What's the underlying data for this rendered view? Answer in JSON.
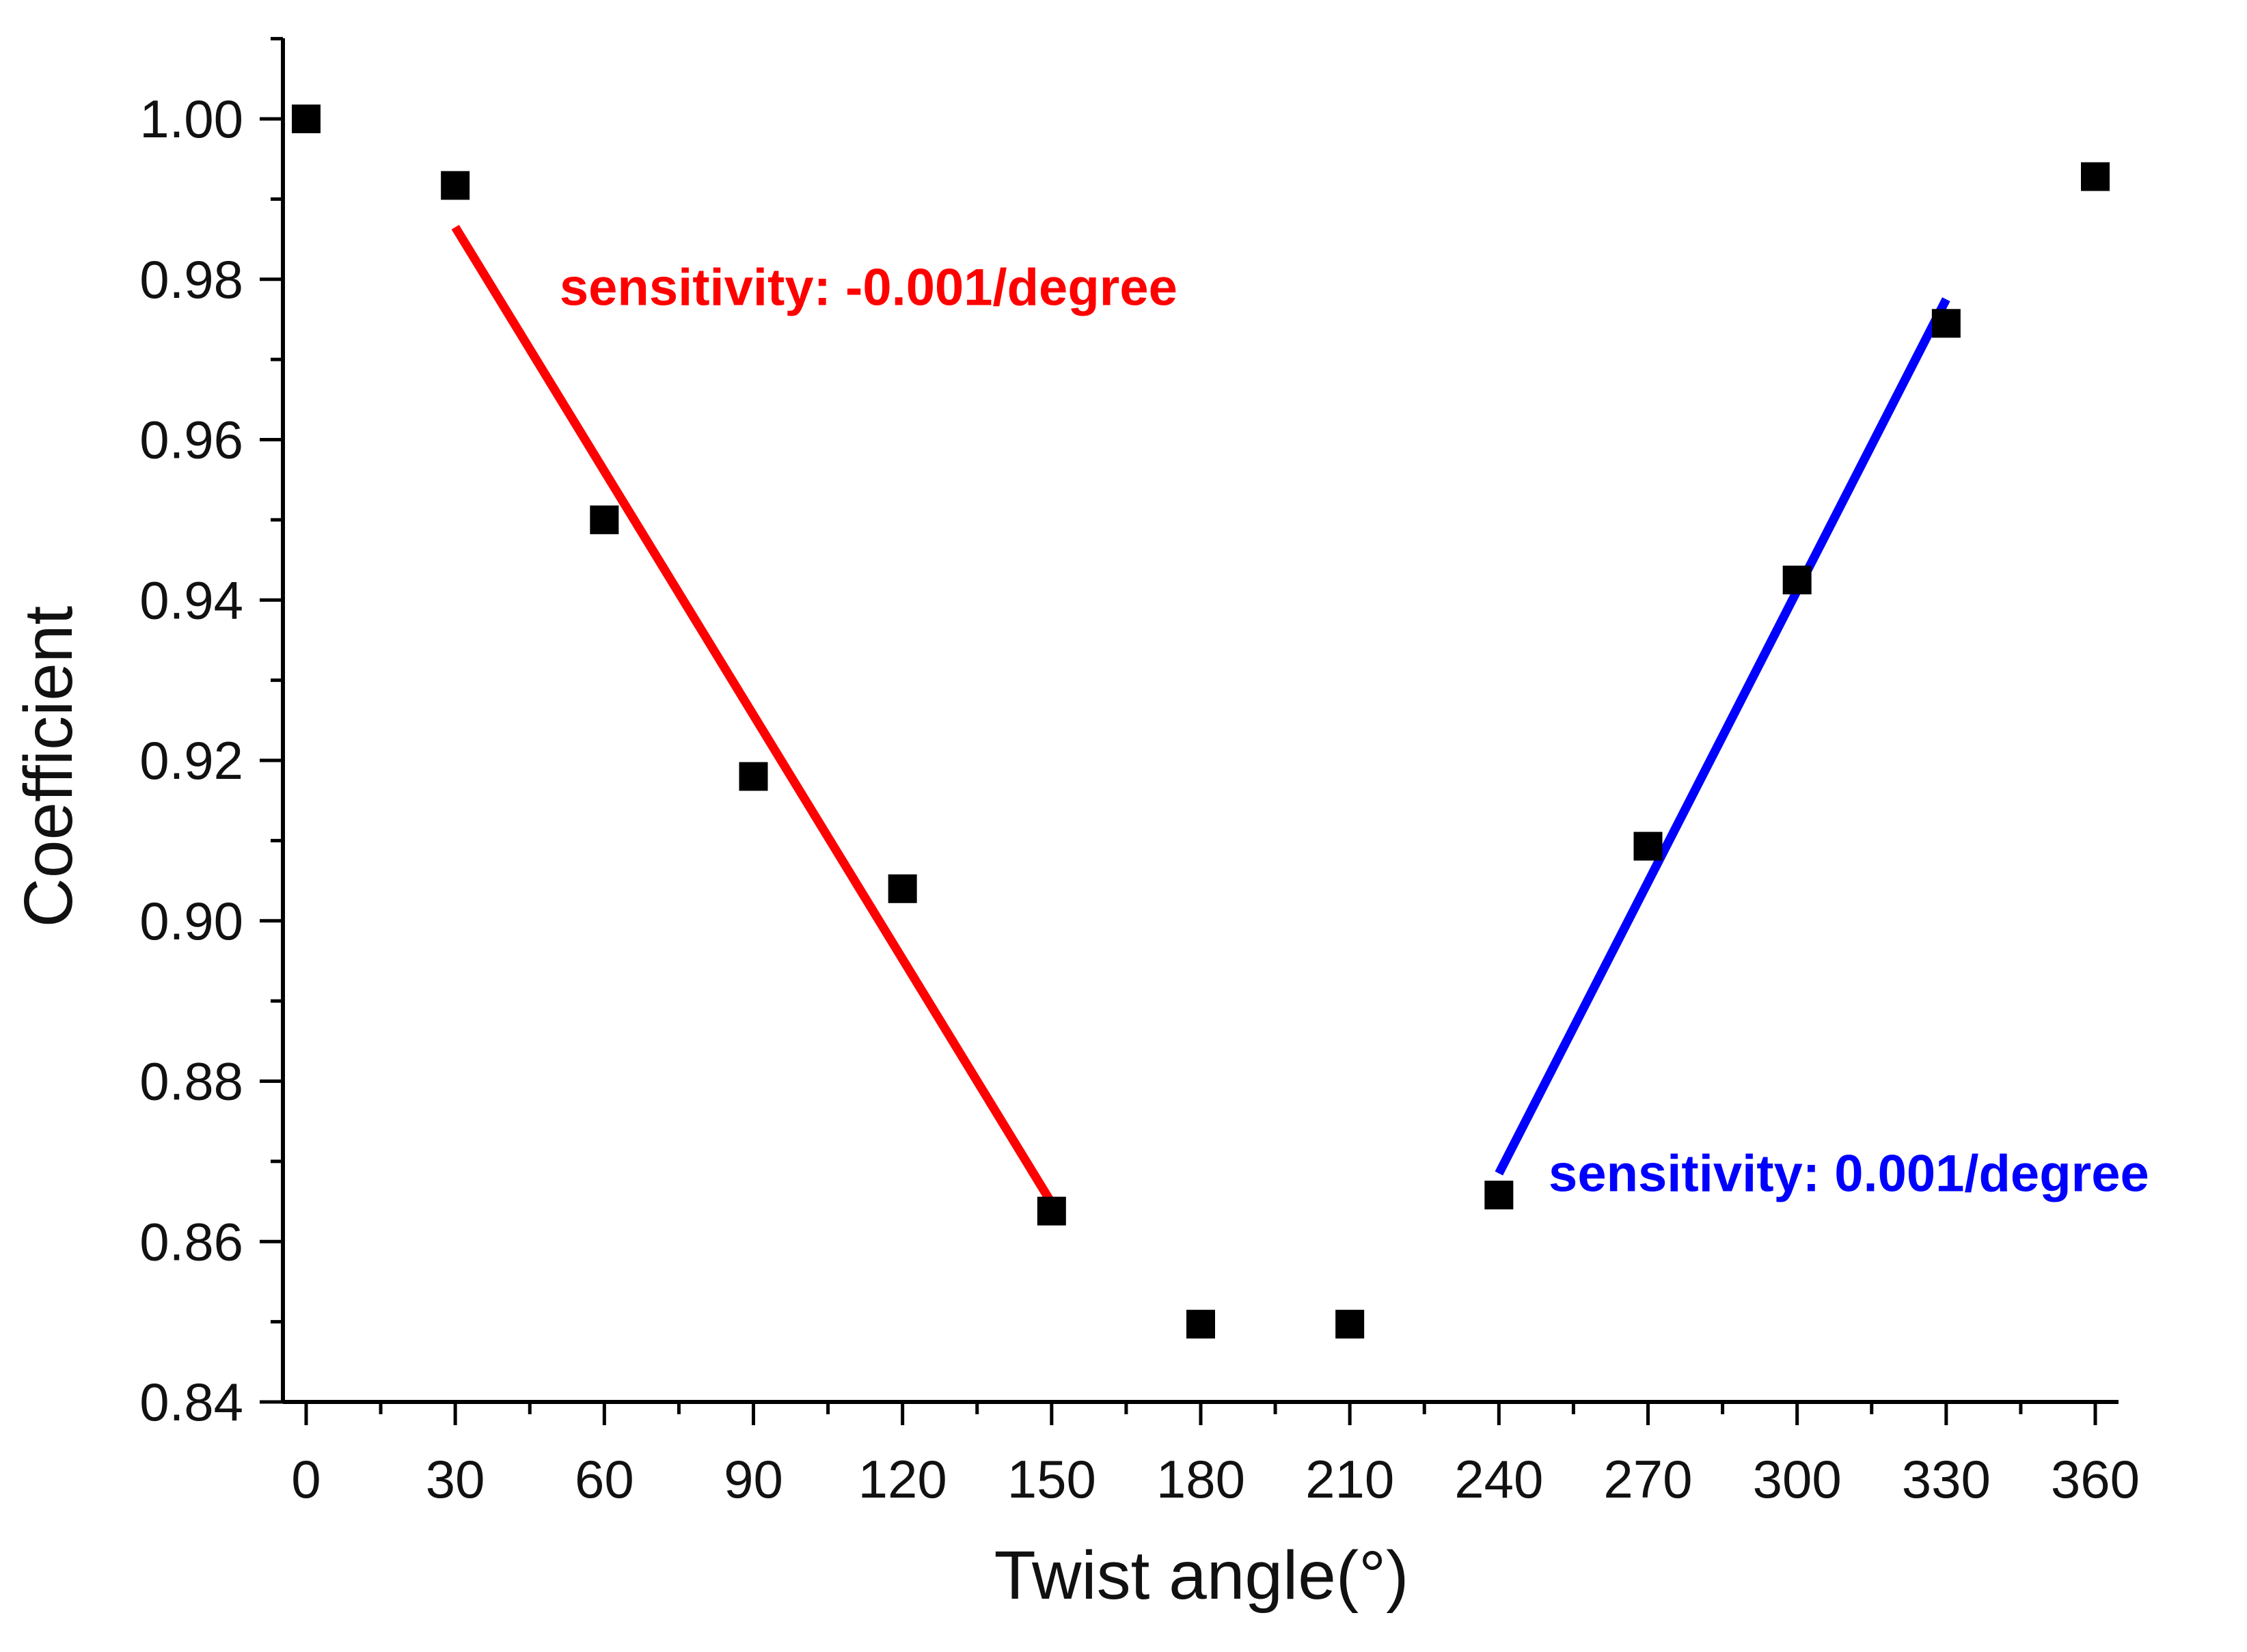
{
  "chart_data": {
    "type": "scatter",
    "xlabel": "Twist angle(°)",
    "ylabel": "Coefficient",
    "xlim": [
      -8,
      380
    ],
    "ylim": [
      0.84,
      1.01
    ],
    "x_ticks": [
      0,
      30,
      60,
      90,
      120,
      150,
      180,
      210,
      240,
      270,
      300,
      330,
      360
    ],
    "x_tick_labels": [
      "0",
      "30",
      "60",
      "90",
      "120",
      "150",
      "180",
      "210",
      "240",
      "270",
      "300",
      "330",
      "360"
    ],
    "y_ticks": [
      0.84,
      0.86,
      0.88,
      0.9,
      0.92,
      0.94,
      0.96,
      0.98,
      1.0
    ],
    "y_tick_labels": [
      "0.84",
      "0.86",
      "0.88",
      "0.90",
      "0.92",
      "0.94",
      "0.96",
      "0.98",
      "1.00"
    ],
    "grid": false,
    "legend": "none",
    "series": [
      {
        "marker": "square",
        "color": "#000000",
        "x": [
          0,
          30,
          60,
          90,
          120,
          150,
          180,
          210,
          240,
          270,
          300,
          330,
          360
        ],
        "y": [
          1.0,
          0.9917,
          0.95,
          0.918,
          0.904,
          0.8638,
          0.8497,
          0.8497,
          0.8658,
          0.9093,
          0.9425,
          0.9745,
          0.9928
        ]
      }
    ],
    "fit_lines": [
      {
        "color": "#ff0000",
        "x": [
          30,
          150
        ],
        "y": [
          0.9865,
          0.8648
        ]
      },
      {
        "color": "#0000ff",
        "x": [
          240,
          330
        ],
        "y": [
          0.8685,
          0.9775
        ]
      }
    ],
    "annotations": [
      {
        "text": "sensitivity: -0.001/degree",
        "color": "#ff0000",
        "x": 51,
        "y": 0.979
      },
      {
        "text": "sensitivity: 0.001/degree",
        "color": "#0000ff",
        "x": 250,
        "y": 0.8685
      }
    ]
  }
}
